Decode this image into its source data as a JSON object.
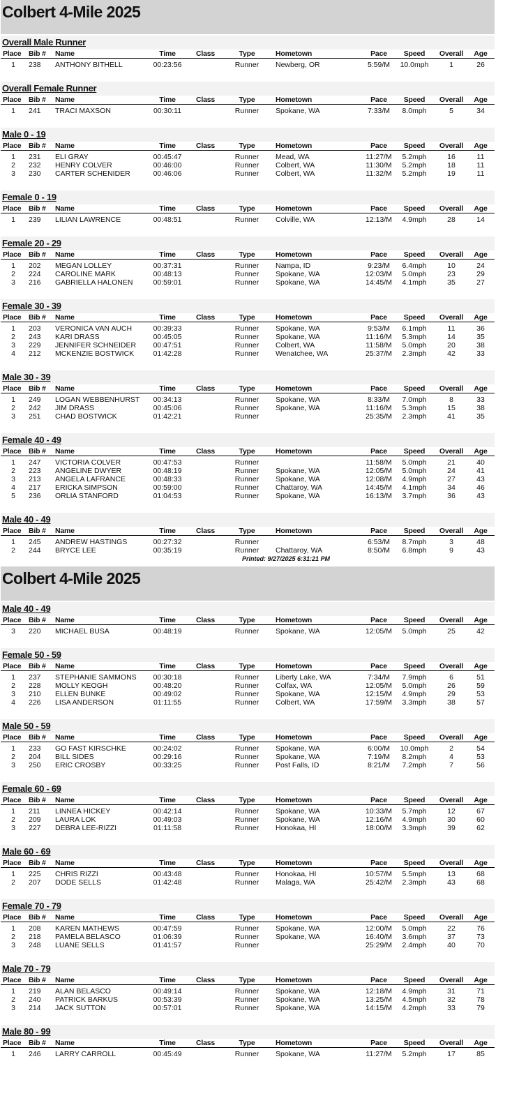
{
  "columns": [
    "Place",
    "Bib #",
    "Name",
    "Time",
    "Class",
    "Type",
    "Hometown",
    "Pace",
    "Speed",
    "Overall",
    "Age"
  ],
  "printed": "Printed: 9/27/2025 6:31:21 PM",
  "pages": [
    {
      "title": "Colbert 4-Mile 2025",
      "sections": [
        {
          "title": "Overall Male Runner",
          "rows": [
            [
              "1",
              "238",
              "ANTHONY BITHELL",
              "00:23:56",
              "",
              "Runner",
              "Newberg, OR",
              "5:59/M",
              "10.0mph",
              "1",
              "26"
            ]
          ]
        },
        {
          "title": "Overall Female Runner",
          "rows": [
            [
              "1",
              "241",
              "TRACI MAXSON",
              "00:30:11",
              "",
              "Runner",
              "Spokane, WA",
              "7:33/M",
              "8.0mph",
              "5",
              "34"
            ]
          ]
        },
        {
          "title": "Male 0 - 19",
          "rows": [
            [
              "1",
              "231",
              "ELI GRAY",
              "00:45:47",
              "",
              "Runner",
              "Mead, WA",
              "11:27/M",
              "5.2mph",
              "16",
              "11"
            ],
            [
              "2",
              "232",
              "HENRY COLVER",
              "00:46:00",
              "",
              "Runner",
              "Colbert, WA",
              "11:30/M",
              "5.2mph",
              "18",
              "11"
            ],
            [
              "3",
              "230",
              "CARTER SCHENIDER",
              "00:46:06",
              "",
              "Runner",
              "Colbert, WA",
              "11:32/M",
              "5.2mph",
              "19",
              "11"
            ]
          ]
        },
        {
          "title": "Female 0 - 19",
          "rows": [
            [
              "1",
              "239",
              "LILIAN LAWRENCE",
              "00:48:51",
              "",
              "Runner",
              "Colville, WA",
              "12:13/M",
              "4.9mph",
              "28",
              "14"
            ]
          ]
        },
        {
          "title": "Female 20 - 29",
          "rows": [
            [
              "1",
              "202",
              "MEGAN LOLLEY",
              "00:37:31",
              "",
              "Runner",
              "Nampa, ID",
              "9:23/M",
              "6.4mph",
              "10",
              "24"
            ],
            [
              "2",
              "224",
              "CAROLINE MARK",
              "00:48:13",
              "",
              "Runner",
              "Spokane, WA",
              "12:03/M",
              "5.0mph",
              "23",
              "29"
            ],
            [
              "3",
              "216",
              "GABRIELLA HALONEN",
              "00:59:01",
              "",
              "Runner",
              "Spokane, WA",
              "14:45/M",
              "4.1mph",
              "35",
              "27"
            ]
          ]
        },
        {
          "title": "Female 30 - 39",
          "rows": [
            [
              "1",
              "203",
              "VERONICA VAN AUCH",
              "00:39:33",
              "",
              "Runner",
              "Spokane, WA",
              "9:53/M",
              "6.1mph",
              "11",
              "36"
            ],
            [
              "2",
              "243",
              "KARI DRASS",
              "00:45:05",
              "",
              "Runner",
              "Spokane, WA",
              "11:16/M",
              "5.3mph",
              "14",
              "35"
            ],
            [
              "3",
              "229",
              "JENNIFER SCHNEIDER",
              "00:47:51",
              "",
              "Runner",
              "Colbert, WA",
              "11:58/M",
              "5.0mph",
              "20",
              "38"
            ],
            [
              "4",
              "212",
              "MCKENZIE BOSTWICK",
              "01:42:28",
              "",
              "Runner",
              "Wenatchee, WA",
              "25:37/M",
              "2.3mph",
              "42",
              "33"
            ]
          ]
        },
        {
          "title": "Male 30 - 39",
          "rows": [
            [
              "1",
              "249",
              "LOGAN WEBBENHURST",
              "00:34:13",
              "",
              "Runner",
              "Spokane, WA",
              "8:33/M",
              "7.0mph",
              "8",
              "33"
            ],
            [
              "2",
              "242",
              "JIM DRASS",
              "00:45:06",
              "",
              "Runner",
              "Spokane, WA",
              "11:16/M",
              "5.3mph",
              "15",
              "38"
            ],
            [
              "3",
              "251",
              "CHAD BOSTWICK",
              "01:42:21",
              "",
              "Runner",
              "",
              "25:35/M",
              "2.3mph",
              "41",
              "35"
            ]
          ]
        },
        {
          "title": "Female 40 - 49",
          "rows": [
            [
              "1",
              "247",
              "VICTORIA COLVER",
              "00:47:53",
              "",
              "Runner",
              "",
              "11:58/M",
              "5.0mph",
              "21",
              "40"
            ],
            [
              "2",
              "223",
              "ANGELINE DWYER",
              "00:48:19",
              "",
              "Runner",
              "Spokane, WA",
              "12:05/M",
              "5.0mph",
              "24",
              "41"
            ],
            [
              "3",
              "213",
              "ANGELA LAFRANCE",
              "00:48:33",
              "",
              "Runner",
              "Spokane, WA",
              "12:08/M",
              "4.9mph",
              "27",
              "43"
            ],
            [
              "4",
              "217",
              "ERICKA SIMPSON",
              "00:59:00",
              "",
              "Runner",
              "Chattaroy, WA",
              "14:45/M",
              "4.1mph",
              "34",
              "46"
            ],
            [
              "5",
              "236",
              "ORLIA STANFORD",
              "01:04:53",
              "",
              "Runner",
              "Spokane, WA",
              "16:13/M",
              "3.7mph",
              "36",
              "43"
            ]
          ]
        },
        {
          "title": "Male 40 - 49",
          "rows": [
            [
              "1",
              "245",
              "ANDREW HASTINGS",
              "00:27:32",
              "",
              "Runner",
              "",
              "6:53/M",
              "8.7mph",
              "3",
              "48"
            ],
            [
              "2",
              "244",
              "BRYCE LEE",
              "00:35:19",
              "",
              "Runner",
              "Chattaroy, WA",
              "8:50/M",
              "6.8mph",
              "9",
              "43"
            ]
          ]
        }
      ]
    },
    {
      "title": "Colbert 4-Mile 2025",
      "sections": [
        {
          "title": "Male 40 - 49",
          "rows": [
            [
              "3",
              "220",
              "MICHAEL BUSA",
              "00:48:19",
              "",
              "Runner",
              "Spokane, WA",
              "12:05/M",
              "5.0mph",
              "25",
              "42"
            ]
          ]
        },
        {
          "title": "Female 50 - 59",
          "rows": [
            [
              "1",
              "237",
              "STEPHANIE SAMMONS",
              "00:30:18",
              "",
              "Runner",
              "Liberty Lake, WA",
              "7:34/M",
              "7.9mph",
              "6",
              "51"
            ],
            [
              "2",
              "228",
              "MOLLY KEOGH",
              "00:48:20",
              "",
              "Runner",
              "Colfax, WA",
              "12:05/M",
              "5.0mph",
              "26",
              "59"
            ],
            [
              "3",
              "210",
              "ELLEN BUNKE",
              "00:49:02",
              "",
              "Runner",
              "Spokane, WA",
              "12:15/M",
              "4.9mph",
              "29",
              "53"
            ],
            [
              "4",
              "226",
              "LISA ANDERSON",
              "01:11:55",
              "",
              "Runner",
              "Colbert, WA",
              "17:59/M",
              "3.3mph",
              "38",
              "57"
            ]
          ]
        },
        {
          "title": "Male 50 - 59",
          "rows": [
            [
              "1",
              "233",
              "GO FAST KIRSCHKE",
              "00:24:02",
              "",
              "Runner",
              "Spokane, WA",
              "6:00/M",
              "10.0mph",
              "2",
              "54"
            ],
            [
              "2",
              "204",
              "BILL SIDES",
              "00:29:16",
              "",
              "Runner",
              "Spokane, WA",
              "7:19/M",
              "8.2mph",
              "4",
              "53"
            ],
            [
              "3",
              "250",
              "ERIC CROSBY",
              "00:33:25",
              "",
              "Runner",
              "Post Falls, ID",
              "8:21/M",
              "7.2mph",
              "7",
              "56"
            ]
          ]
        },
        {
          "title": "Female 60 - 69",
          "rows": [
            [
              "1",
              "211",
              "LINNEA HICKEY",
              "00:42:14",
              "",
              "Runner",
              "Spokane, WA",
              "10:33/M",
              "5.7mph",
              "12",
              "67"
            ],
            [
              "2",
              "209",
              "LAURA LOK",
              "00:49:03",
              "",
              "Runner",
              "Spokane, WA",
              "12:16/M",
              "4.9mph",
              "30",
              "60"
            ],
            [
              "3",
              "227",
              "DEBRA LEE-RIZZI",
              "01:11:58",
              "",
              "Runner",
              "Honokaa, HI",
              "18:00/M",
              "3.3mph",
              "39",
              "62"
            ]
          ]
        },
        {
          "title": "Male 60 - 69",
          "rows": [
            [
              "1",
              "225",
              "CHRIS RIZZI",
              "00:43:48",
              "",
              "Runner",
              "Honokaa, HI",
              "10:57/M",
              "5.5mph",
              "13",
              "68"
            ],
            [
              "2",
              "207",
              "DODE SELLS",
              "01:42:48",
              "",
              "Runner",
              "Malaga, WA",
              "25:42/M",
              "2.3mph",
              "43",
              "68"
            ]
          ]
        },
        {
          "title": "Female 70 - 79",
          "rows": [
            [
              "1",
              "208",
              "KAREN MATHEWS",
              "00:47:59",
              "",
              "Runner",
              "Spokane, WA",
              "12:00/M",
              "5.0mph",
              "22",
              "76"
            ],
            [
              "2",
              "218",
              "PAMELA BELASCO",
              "01:06:39",
              "",
              "Runner",
              "Spokane, WA",
              "16:40/M",
              "3.6mph",
              "37",
              "73"
            ],
            [
              "3",
              "248",
              "LUANE SELLS",
              "01:41:57",
              "",
              "Runner",
              "",
              "25:29/M",
              "2.4mph",
              "40",
              "70"
            ]
          ]
        },
        {
          "title": "Male 70 - 79",
          "rows": [
            [
              "1",
              "219",
              "ALAN BELASCO",
              "00:49:14",
              "",
              "Runner",
              "Spokane, WA",
              "12:18/M",
              "4.9mph",
              "31",
              "71"
            ],
            [
              "2",
              "240",
              "PATRICK BARKUS",
              "00:53:39",
              "",
              "Runner",
              "Spokane, WA",
              "13:25/M",
              "4.5mph",
              "32",
              "78"
            ],
            [
              "3",
              "214",
              "JACK SUTTON",
              "00:57:01",
              "",
              "Runner",
              "Spokane, WA",
              "14:15/M",
              "4.2mph",
              "33",
              "79"
            ]
          ]
        },
        {
          "title": "Male 80 - 99",
          "rows": [
            [
              "1",
              "246",
              "LARRY CARROLL",
              "00:45:49",
              "",
              "Runner",
              "Spokane, WA",
              "11:27/M",
              "5.2mph",
              "17",
              "85"
            ]
          ]
        }
      ]
    }
  ]
}
